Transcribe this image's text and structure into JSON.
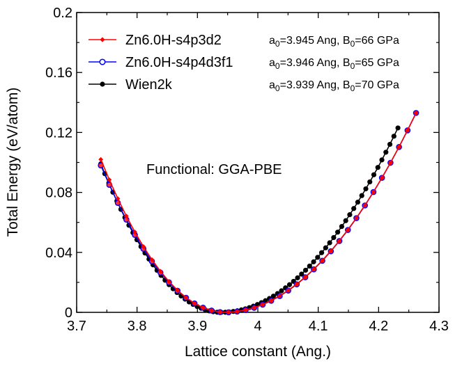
{
  "chart_data": {
    "type": "line",
    "xlabel": "Lattice constant (Ang.)",
    "ylabel": "Total Energy (eV/atom)",
    "xlim": [
      3.7,
      4.3
    ],
    "ylim": [
      0,
      0.2
    ],
    "xticks": [
      "3.7",
      "3.8",
      "3.9",
      "4",
      "4.1",
      "4.2",
      "4.3"
    ],
    "yticks": [
      "0",
      "0.04",
      "0.08",
      "0.12",
      "0.16",
      "0.2"
    ],
    "grid": false,
    "legend_position": "top-left",
    "annotation": "Functional: GGA-PBE",
    "series": [
      {
        "name": "Zn6.0H-s4p3d2",
        "color": "#ff0000",
        "marker": "diamond",
        "a0": 3.945,
        "B0": 66,
        "params": {
          "a_prefix": "a",
          "a_sub": "0",
          "a_text": "=3.945 Ang, B",
          "b_sub": "0",
          "b_text": "=66 GPa"
        }
      },
      {
        "name": "Zn6.0H-s4p4d3f1",
        "color": "#0000ff",
        "marker": "open-circle",
        "a0": 3.946,
        "B0": 65,
        "params": {
          "a_prefix": "a",
          "a_sub": "0",
          "a_text": "=3.946 Ang, B",
          "b_sub": "0",
          "b_text": "=65 GPa"
        }
      },
      {
        "name": "Wien2k",
        "color": "#000000",
        "marker": "filled-circle",
        "a0": 3.939,
        "B0": 70,
        "params": {
          "a_prefix": "a",
          "a_sub": "0",
          "a_text": "=3.939 Ang, B",
          "b_sub": "0",
          "b_text": "=70 GPa"
        }
      }
    ],
    "sampling": {
      "Zn6.0H-s4p3d2": {
        "x_start": 3.74,
        "x_end": 4.262,
        "count": 38
      },
      "Zn6.0H-s4p4d3f1": {
        "x_start": 3.74,
        "x_end": 4.262,
        "count": 38
      },
      "Wien2k": {
        "x_start": 3.74,
        "x_end": 4.232,
        "count": 75
      }
    },
    "endpoints": {
      "Zn6.0H-s4p3d2": {
        "y_first": 0.102,
        "y_last": 0.133
      },
      "Zn6.0H-s4p4d3f1": {
        "y_first": 0.098,
        "y_last": 0.133
      },
      "Wien2k": {
        "y_first": 0.099,
        "y_last": 0.123
      }
    }
  }
}
